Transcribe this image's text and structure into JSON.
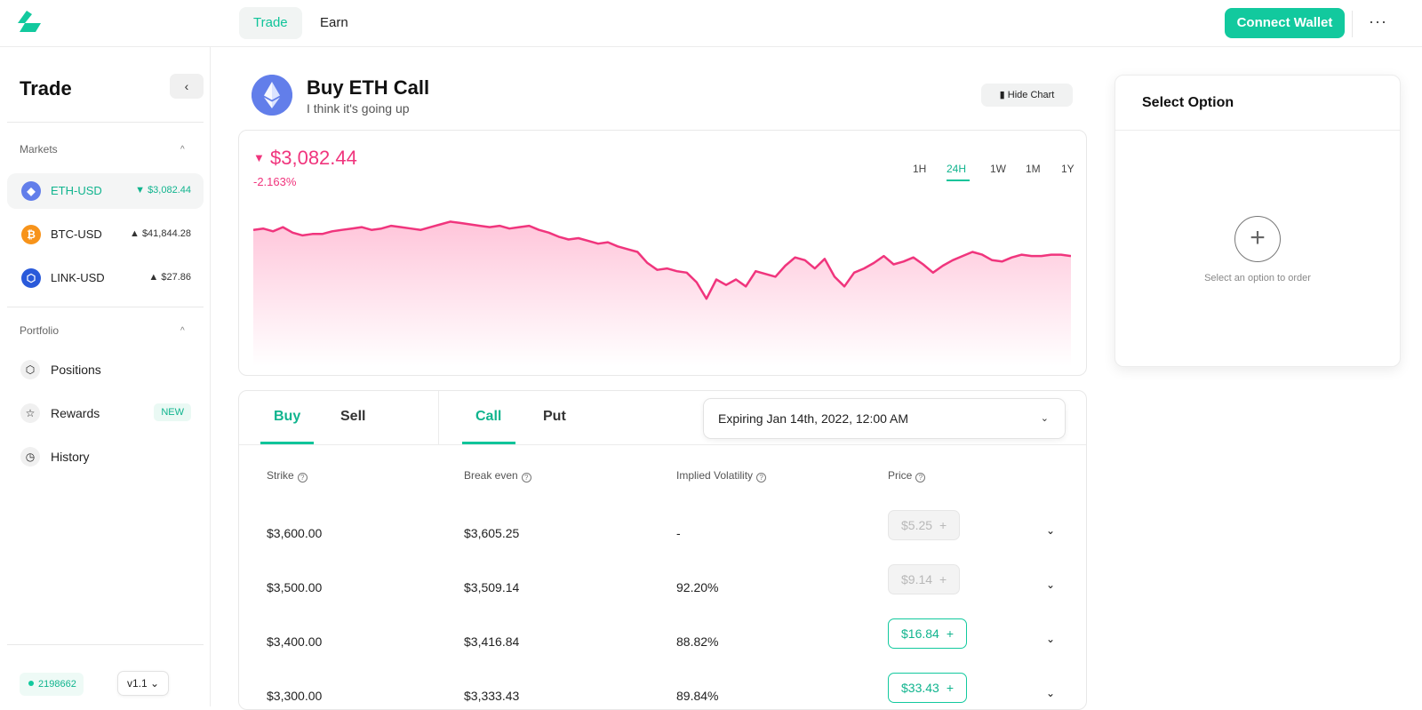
{
  "nav": {
    "tabs": [
      "Trade",
      "Earn"
    ],
    "connect_label": "Connect Wallet",
    "more": "···"
  },
  "sidebar": {
    "title": "Trade",
    "collapse_icon": "chevron-left-icon",
    "markets_label": "Markets",
    "markets": [
      {
        "name": "ETH-USD",
        "price": "$3,082.44",
        "direction": "▼",
        "color": "#627eea",
        "glyph": "◆",
        "active": true
      },
      {
        "name": "BTC-USD",
        "price": "$41,844.28",
        "direction": "▲",
        "color": "#f7931a",
        "glyph": "₿",
        "active": false
      },
      {
        "name": "LINK-USD",
        "price": "$27.86",
        "direction": "▲",
        "color": "#2a5ada",
        "glyph": "⬡",
        "active": false
      }
    ],
    "portfolio_label": "Portfolio",
    "portfolio": [
      {
        "label": "Positions",
        "icon": "cube-icon",
        "glyph": "⬡"
      },
      {
        "label": "Rewards",
        "icon": "star-icon",
        "glyph": "☆",
        "badge": "NEW"
      },
      {
        "label": "History",
        "icon": "clock-icon",
        "glyph": "◷"
      }
    ],
    "block_number": "2198662",
    "version": "v1.1"
  },
  "header": {
    "title": "Buy ETH Call",
    "subtitle": "I think it's going up",
    "hide_chart_label": "Hide Chart"
  },
  "price": {
    "current": "$3,082.44",
    "change": "-2.163%",
    "direction": "▼"
  },
  "timeframes": {
    "options": [
      "1H",
      "24H",
      "1W",
      "1M",
      "1Y"
    ],
    "selected": "24H"
  },
  "order": {
    "side_tabs": [
      "Buy",
      "Sell"
    ],
    "side_selected": "Buy",
    "type_tabs": [
      "Call",
      "Put"
    ],
    "type_selected": "Call",
    "expiry": "Expiring Jan 14th, 2022, 12:00 AM",
    "columns": [
      "Strike",
      "Break even",
      "Implied Volatility",
      "Price"
    ],
    "rows": [
      {
        "strike": "$3,600.00",
        "breakeven": "$3,605.25",
        "iv": "-",
        "price": "$5.25",
        "enabled": false
      },
      {
        "strike": "$3,500.00",
        "breakeven": "$3,509.14",
        "iv": "92.20%",
        "price": "$9.14",
        "enabled": false
      },
      {
        "strike": "$3,400.00",
        "breakeven": "$3,416.84",
        "iv": "88.82%",
        "price": "$16.84",
        "enabled": true
      },
      {
        "strike": "$3,300.00",
        "breakeven": "$3,333.43",
        "iv": "89.84%",
        "price": "$33.43",
        "enabled": true
      }
    ]
  },
  "select_option": {
    "title": "Select Option",
    "hint": "Select an option to order"
  },
  "colors": {
    "accent": "#12c99e",
    "negative": "#f0357d",
    "fill": "#ffd3e3"
  },
  "chart_data": {
    "type": "area",
    "title": "",
    "xlabel": "",
    "ylabel": "",
    "grid": false,
    "values": [
      0.86,
      0.87,
      0.85,
      0.88,
      0.84,
      0.82,
      0.83,
      0.83,
      0.85,
      0.86,
      0.87,
      0.88,
      0.86,
      0.87,
      0.89,
      0.88,
      0.87,
      0.86,
      0.88,
      0.9,
      0.92,
      0.91,
      0.9,
      0.89,
      0.88,
      0.89,
      0.87,
      0.88,
      0.89,
      0.86,
      0.84,
      0.81,
      0.79,
      0.8,
      0.78,
      0.76,
      0.77,
      0.74,
      0.72,
      0.7,
      0.62,
      0.57,
      0.58,
      0.56,
      0.55,
      0.48,
      0.36,
      0.5,
      0.46,
      0.5,
      0.45,
      0.56,
      0.54,
      0.52,
      0.6,
      0.66,
      0.64,
      0.58,
      0.65,
      0.52,
      0.45,
      0.55,
      0.58,
      0.62,
      0.67,
      0.61,
      0.63,
      0.66,
      0.61,
      0.55,
      0.6,
      0.64,
      0.67,
      0.7,
      0.68,
      0.64,
      0.63,
      0.66,
      0.68,
      0.67,
      0.67,
      0.68,
      0.68,
      0.67
    ]
  }
}
